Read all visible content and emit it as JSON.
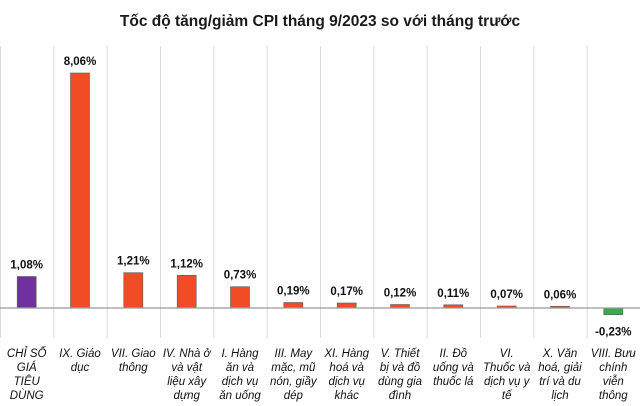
{
  "chart_data": {
    "type": "bar",
    "title": "Tốc độ tăng/giảm CPI tháng 9/2023 so với tháng trước",
    "unit": "%",
    "grid": true,
    "legend": "none",
    "ylim": [
      -0.5,
      8.5
    ],
    "categories": [
      [
        "CHỈ SỐ",
        "GIÁ",
        "TIÊU",
        "DÙNG"
      ],
      [
        "IX. Giáo",
        "dục"
      ],
      [
        "VII. Giao",
        "thông"
      ],
      [
        "IV. Nhà ở",
        "và vật",
        "liệu xây",
        "dựng"
      ],
      [
        "I. Hàng",
        "ăn và",
        "dịch vụ",
        "ăn uống"
      ],
      [
        "III. May",
        "mặc, mũ",
        "nón, giầy",
        "dép"
      ],
      [
        "XI. Hàng",
        "hoá và",
        "dịch vụ",
        "khác"
      ],
      [
        "V. Thiết",
        "bị và đồ",
        "dùng gia",
        "đình"
      ],
      [
        "II. Đồ",
        "uống và",
        "thuốc lá"
      ],
      [
        "VI.",
        "Thuốc và",
        "dịch vụ y",
        "tế"
      ],
      [
        "X. Văn",
        "hoá, giải",
        "trí và du",
        "lịch"
      ],
      [
        "VIII. Bưu",
        "chính",
        "viễn",
        "thông"
      ]
    ],
    "values": [
      1.08,
      8.06,
      1.21,
      1.12,
      0.73,
      0.19,
      0.17,
      0.12,
      0.11,
      0.07,
      0.06,
      -0.23
    ],
    "value_labels": [
      "1,08%",
      "8,06%",
      "1,21%",
      "1,12%",
      "0,73%",
      "0,19%",
      "0,17%",
      "0,12%",
      "0,11%",
      "0,07%",
      "0,06%",
      "-0,23%"
    ],
    "colors": {
      "total": "#7030a0",
      "increase": "#f24c27",
      "decrease": "#3da651",
      "grid": "#d9d9d9",
      "axis": "#9a9a9a"
    }
  }
}
